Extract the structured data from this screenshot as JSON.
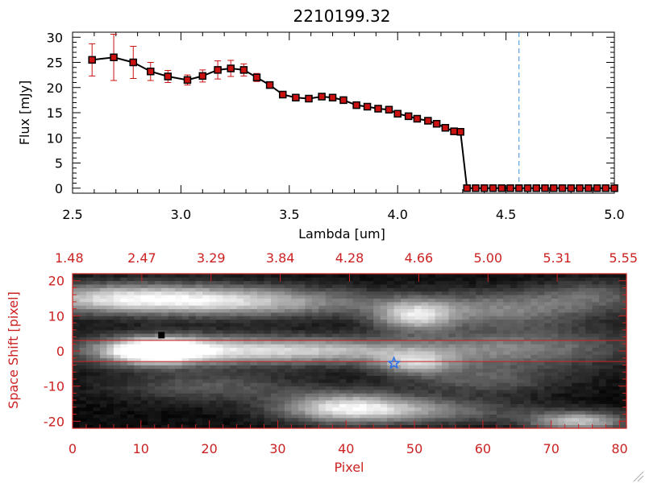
{
  "colors": {
    "axis_top": "#000000",
    "axis_bottom": "#cc2222",
    "marker_fill": "#cc1111",
    "errorbar": "#cc1111",
    "line": "#000000",
    "dashed_line": "#3a8fd8",
    "star": "#2a6fe8",
    "band_line": "#cc2222"
  },
  "chart_data": [
    {
      "type": "line",
      "title": "2210199.32",
      "xlabel": "Lambda [um]",
      "ylabel": "Flux [mJy]",
      "xlim": [
        2.5,
        5.0
      ],
      "ylim": [
        -1,
        31
      ],
      "xticks": [
        2.5,
        3.0,
        3.5,
        4.0,
        4.5,
        5.0
      ],
      "xtick_labels": [
        "2.5",
        "3.0",
        "3.5",
        "4.0",
        "4.5",
        "5.0"
      ],
      "yticks": [
        0,
        5,
        10,
        15,
        20,
        25,
        30
      ],
      "ytick_labels": [
        "0",
        "5",
        "10",
        "15",
        "20",
        "25",
        "30"
      ],
      "vline_x": 4.56,
      "series": [
        {
          "name": "flux",
          "x": [
            2.59,
            2.69,
            2.78,
            2.86,
            2.94,
            3.03,
            3.1,
            3.17,
            3.23,
            3.29,
            3.35,
            3.41,
            3.47,
            3.53,
            3.59,
            3.65,
            3.7,
            3.75,
            3.81,
            3.86,
            3.91,
            3.96,
            4.0,
            4.05,
            4.09,
            4.14,
            4.18,
            4.22,
            4.26,
            4.29,
            4.32,
            4.36,
            4.4,
            4.44,
            4.48,
            4.52,
            4.56,
            4.6,
            4.64,
            4.68,
            4.72,
            4.76,
            4.8,
            4.84,
            4.88,
            4.92,
            4.96,
            5.0
          ],
          "y": [
            25.5,
            26.0,
            25.0,
            23.2,
            22.2,
            21.5,
            22.3,
            23.5,
            23.8,
            23.5,
            22.0,
            20.5,
            18.6,
            18.0,
            17.8,
            18.2,
            18.0,
            17.5,
            16.5,
            16.2,
            15.8,
            15.6,
            14.8,
            14.3,
            13.8,
            13.4,
            12.8,
            12.0,
            11.3,
            11.2,
            0,
            0,
            0,
            0,
            0,
            0,
            0,
            0,
            0,
            0,
            0,
            0,
            0,
            0,
            0,
            0,
            0,
            0
          ],
          "yerr": [
            3.2,
            4.6,
            3.2,
            1.8,
            1.2,
            1.0,
            1.2,
            1.8,
            1.6,
            1.2,
            0.8,
            0.5,
            0.5,
            0.4,
            0.4,
            0.4,
            0.4,
            0.4,
            0.4,
            0.4,
            0.4,
            0.4,
            0.4,
            0.4,
            0.4,
            0.4,
            0.4,
            0.4,
            0.4,
            0.4,
            0,
            0,
            0,
            0,
            0,
            0,
            0,
            0,
            0,
            0,
            0,
            0,
            0,
            0,
            0,
            0,
            0,
            0
          ]
        }
      ]
    },
    {
      "type": "heatmap",
      "xlabel": "Pixel",
      "ylabel": "Space Shift [pixel]",
      "xlim": [
        0,
        81
      ],
      "ylim": [
        -22,
        22
      ],
      "xticks": [
        0,
        10,
        20,
        30,
        40,
        50,
        60,
        70,
        80
      ],
      "xtick_labels": [
        "0",
        "10",
        "20",
        "30",
        "40",
        "50",
        "60",
        "70",
        "80"
      ],
      "yticks": [
        -20,
        -10,
        0,
        10,
        20
      ],
      "ytick_labels": [
        "-20",
        "-10",
        "0",
        "10",
        "20"
      ],
      "top_axis_labels": [
        "1.48",
        "2.47",
        "3.29",
        "3.84",
        "4.28",
        "4.66",
        "5.00",
        "5.31",
        "5.55"
      ],
      "band_rows": [
        3,
        -3
      ],
      "star_point": {
        "x": 47,
        "y": -3.5
      },
      "black_marker": {
        "x": 13,
        "y": 4.5
      },
      "blobs": [
        {
          "x": 12,
          "y": 0,
          "sx": 5,
          "sy": 2.6,
          "v": 1.0
        },
        {
          "x": 20,
          "y": 0.5,
          "sx": 14,
          "sy": 3,
          "v": 0.55
        },
        {
          "x": 38,
          "y": 0,
          "sx": 14,
          "sy": 2.5,
          "v": 0.45
        },
        {
          "x": 50,
          "y": -3.5,
          "sx": 4,
          "sy": 2.2,
          "v": 0.55
        },
        {
          "x": 8,
          "y": 15,
          "sx": 12,
          "sy": 3,
          "v": 0.8
        },
        {
          "x": 28,
          "y": 14,
          "sx": 12,
          "sy": 3,
          "v": 0.55
        },
        {
          "x": 50,
          "y": 10,
          "sx": 4,
          "sy": 3,
          "v": 0.65
        },
        {
          "x": 62,
          "y": 12,
          "sx": 10,
          "sy": 3.5,
          "v": 0.45
        },
        {
          "x": 76,
          "y": 16,
          "sx": 6,
          "sy": 3,
          "v": 0.3
        },
        {
          "x": 40,
          "y": -16,
          "sx": 7,
          "sy": 3,
          "v": 0.75
        },
        {
          "x": 52,
          "y": -17,
          "sx": 10,
          "sy": 2.5,
          "v": 0.4
        },
        {
          "x": 74,
          "y": -20,
          "sx": 5,
          "sy": 2,
          "v": 0.7
        },
        {
          "x": 66,
          "y": 1,
          "sx": 12,
          "sy": 4,
          "v": 0.4
        },
        {
          "x": 20,
          "y": -10,
          "sx": 10,
          "sy": 3,
          "v": 0.3
        },
        {
          "x": 60,
          "y": -8,
          "sx": 8,
          "sy": 3,
          "v": 0.3
        }
      ]
    }
  ]
}
